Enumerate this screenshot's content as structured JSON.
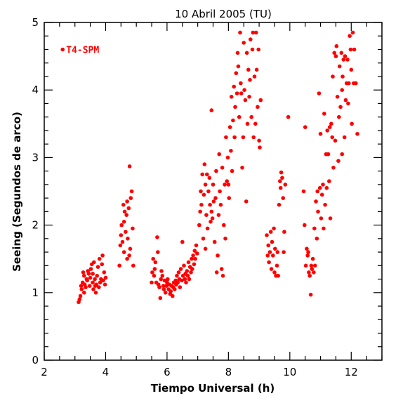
{
  "chart_data": {
    "type": "scatter",
    "title": "10 Abril 2005 (TU)",
    "xlabel": "Tiempo Universal (h)",
    "ylabel": "Seeing (Segundos de arco)",
    "xlim": [
      2,
      13
    ],
    "ylim": [
      0,
      5
    ],
    "xticks": [
      2,
      4,
      6,
      8,
      10,
      12
    ],
    "yticks": [
      0,
      1,
      2,
      3,
      4,
      5
    ],
    "grid": false,
    "legend_placement": "top-left",
    "series": [
      {
        "name": "T4-SPM",
        "color": "#ff0000",
        "points": [
          [
            2.6,
            4.6
          ],
          [
            3.12,
            0.86
          ],
          [
            3.15,
            0.9
          ],
          [
            3.18,
            0.95
          ],
          [
            3.2,
            1.1
          ],
          [
            3.22,
            1.05
          ],
          [
            3.25,
            1.15
          ],
          [
            3.27,
            1.3
          ],
          [
            3.3,
            1.25
          ],
          [
            3.32,
            1.12
          ],
          [
            3.35,
            1.08
          ],
          [
            3.38,
            1.2
          ],
          [
            3.4,
            1.18
          ],
          [
            3.42,
            1.32
          ],
          [
            3.45,
            1.28
          ],
          [
            3.48,
            1.1
          ],
          [
            3.5,
            1.22
          ],
          [
            3.52,
            1.35
          ],
          [
            3.55,
            1.42
          ],
          [
            3.58,
            1.15
          ],
          [
            3.6,
            1.05
          ],
          [
            3.62,
            1.45
          ],
          [
            3.65,
            1.2
          ],
          [
            3.68,
            1.0
          ],
          [
            3.7,
            1.12
          ],
          [
            3.72,
            1.25
          ],
          [
            3.75,
            1.38
          ],
          [
            3.78,
            1.08
          ],
          [
            3.8,
            1.5
          ],
          [
            3.82,
            1.15
          ],
          [
            3.85,
            1.2
          ],
          [
            3.88,
            1.42
          ],
          [
            3.9,
            1.55
          ],
          [
            3.92,
            1.18
          ],
          [
            3.95,
            1.3
          ],
          [
            3.98,
            1.12
          ],
          [
            4.0,
            1.22
          ],
          [
            3.3,
            1.0
          ],
          [
            3.58,
            1.28
          ],
          [
            3.66,
            1.1
          ],
          [
            4.45,
            1.4
          ],
          [
            4.48,
            1.7
          ],
          [
            4.5,
            1.85
          ],
          [
            4.52,
            2.0
          ],
          [
            4.55,
            1.75
          ],
          [
            4.58,
            2.3
          ],
          [
            4.6,
            1.6
          ],
          [
            4.62,
            2.2
          ],
          [
            4.65,
            1.9
          ],
          [
            4.68,
            2.15
          ],
          [
            4.7,
            1.5
          ],
          [
            4.72,
            1.8
          ],
          [
            4.75,
            2.25
          ],
          [
            4.78,
            2.87
          ],
          [
            4.8,
            1.65
          ],
          [
            4.82,
            2.4
          ],
          [
            4.85,
            2.5
          ],
          [
            4.88,
            1.95
          ],
          [
            4.9,
            1.4
          ],
          [
            4.6,
            2.05
          ],
          [
            4.7,
            2.35
          ],
          [
            4.77,
            1.55
          ],
          [
            5.5,
            1.15
          ],
          [
            5.52,
            1.3
          ],
          [
            5.55,
            1.5
          ],
          [
            5.58,
            1.25
          ],
          [
            5.6,
            1.35
          ],
          [
            5.62,
            1.45
          ],
          [
            5.65,
            1.15
          ],
          [
            5.68,
            1.82
          ],
          [
            5.7,
            1.6
          ],
          [
            5.72,
            1.12
          ],
          [
            5.75,
            1.08
          ],
          [
            5.78,
            0.92
          ],
          [
            5.8,
            1.2
          ],
          [
            5.82,
            1.32
          ],
          [
            5.85,
            1.25
          ],
          [
            5.88,
            1.1
          ],
          [
            5.9,
            1.05
          ],
          [
            5.92,
            1.18
          ],
          [
            5.95,
            1.0
          ],
          [
            5.98,
            1.1
          ],
          [
            6.0,
            1.15
          ],
          [
            6.02,
            1.2
          ],
          [
            6.05,
            1.05
          ],
          [
            6.08,
            1.12
          ],
          [
            6.1,
            0.98
          ],
          [
            6.12,
            1.02
          ],
          [
            6.15,
            1.1
          ],
          [
            6.18,
            0.95
          ],
          [
            6.2,
            1.08
          ],
          [
            6.22,
            1.15
          ],
          [
            6.25,
            1.05
          ],
          [
            6.28,
            1.18
          ],
          [
            6.3,
            1.12
          ],
          [
            6.32,
            1.25
          ],
          [
            6.35,
            1.15
          ],
          [
            6.38,
            1.3
          ],
          [
            6.4,
            1.2
          ],
          [
            6.42,
            1.08
          ],
          [
            6.45,
            1.35
          ],
          [
            6.48,
            1.18
          ],
          [
            6.5,
            1.75
          ],
          [
            6.52,
            1.25
          ],
          [
            6.55,
            1.4
          ],
          [
            6.58,
            1.2
          ],
          [
            6.6,
            1.28
          ],
          [
            6.62,
            1.15
          ],
          [
            6.65,
            1.32
          ],
          [
            6.68,
            1.25
          ],
          [
            6.7,
            1.45
          ],
          [
            6.72,
            1.2
          ],
          [
            6.75,
            1.38
          ],
          [
            6.78,
            1.3
          ],
          [
            6.8,
            1.5
          ],
          [
            6.82,
            1.35
          ],
          [
            6.85,
            1.55
          ],
          [
            6.88,
            1.42
          ],
          [
            6.9,
            1.62
          ],
          [
            6.92,
            1.5
          ],
          [
            6.95,
            1.7
          ],
          [
            6.98,
            1.58
          ],
          [
            7.05,
            2.0
          ],
          [
            7.08,
            2.2
          ],
          [
            7.1,
            2.5
          ],
          [
            7.12,
            2.3
          ],
          [
            7.15,
            2.75
          ],
          [
            7.18,
            1.8
          ],
          [
            7.2,
            2.45
          ],
          [
            7.22,
            2.9
          ],
          [
            7.25,
            2.6
          ],
          [
            7.28,
            2.15
          ],
          [
            7.3,
            2.75
          ],
          [
            7.32,
            1.95
          ],
          [
            7.35,
            2.5
          ],
          [
            7.38,
            2.7
          ],
          [
            7.4,
            2.3
          ],
          [
            7.42,
            2.05
          ],
          [
            7.45,
            3.7
          ],
          [
            7.48,
            2.1
          ],
          [
            7.5,
            2.6
          ],
          [
            7.52,
            2.35
          ],
          [
            7.55,
            1.75
          ],
          [
            7.58,
            2.4
          ],
          [
            7.6,
            2.8
          ],
          [
            7.62,
            1.3
          ],
          [
            7.65,
            1.55
          ],
          [
            7.68,
            2.15
          ],
          [
            7.7,
            3.05
          ],
          [
            7.72,
            2.5
          ],
          [
            7.75,
            2.3
          ],
          [
            7.78,
            1.35
          ],
          [
            7.8,
            2.85
          ],
          [
            7.82,
            1.25
          ],
          [
            7.85,
            2.0
          ],
          [
            7.88,
            2.6
          ],
          [
            7.9,
            1.8
          ],
          [
            7.92,
            3.3
          ],
          [
            7.95,
            2.65
          ],
          [
            7.98,
            3.0
          ],
          [
            8.0,
            2.6
          ],
          [
            8.02,
            2.4
          ],
          [
            8.05,
            3.45
          ],
          [
            8.08,
            3.1
          ],
          [
            8.1,
            3.9
          ],
          [
            8.12,
            2.8
          ],
          [
            8.15,
            3.55
          ],
          [
            8.18,
            4.05
          ],
          [
            8.2,
            3.3
          ],
          [
            8.22,
            3.75
          ],
          [
            8.25,
            4.25
          ],
          [
            8.28,
            3.95
          ],
          [
            8.3,
            4.55
          ],
          [
            8.32,
            4.35
          ],
          [
            8.35,
            3.6
          ],
          [
            8.38,
            4.85
          ],
          [
            8.4,
            4.1
          ],
          [
            8.42,
            3.95
          ],
          [
            8.45,
            2.85
          ],
          [
            8.48,
            3.3
          ],
          [
            8.5,
            4.7
          ],
          [
            8.52,
            4.0
          ],
          [
            8.55,
            3.85
          ],
          [
            8.58,
            2.35
          ],
          [
            8.6,
            4.55
          ],
          [
            8.62,
            3.5
          ],
          [
            8.65,
            4.3
          ],
          [
            8.68,
            3.9
          ],
          [
            8.7,
            4.15
          ],
          [
            8.72,
            4.75
          ],
          [
            8.75,
            3.6
          ],
          [
            8.78,
            4.6
          ],
          [
            8.8,
            4.85
          ],
          [
            8.82,
            3.3
          ],
          [
            8.85,
            4.2
          ],
          [
            8.88,
            3.5
          ],
          [
            8.9,
            4.85
          ],
          [
            8.92,
            4.3
          ],
          [
            8.95,
            3.75
          ],
          [
            8.98,
            4.6
          ],
          [
            9.0,
            3.25
          ],
          [
            9.02,
            3.15
          ],
          [
            9.05,
            3.85
          ],
          [
            7.25,
            1.65
          ],
          [
            7.45,
            2.2
          ],
          [
            9.25,
            1.85
          ],
          [
            9.28,
            1.55
          ],
          [
            9.3,
            1.7
          ],
          [
            9.32,
            1.45
          ],
          [
            9.35,
            1.6
          ],
          [
            9.38,
            1.9
          ],
          [
            9.4,
            1.35
          ],
          [
            9.42,
            1.75
          ],
          [
            9.45,
            1.55
          ],
          [
            9.48,
            1.95
          ],
          [
            9.5,
            1.3
          ],
          [
            9.52,
            1.65
          ],
          [
            9.55,
            1.25
          ],
          [
            9.58,
            1.4
          ],
          [
            9.6,
            1.6
          ],
          [
            9.62,
            1.25
          ],
          [
            9.65,
            2.3
          ],
          [
            9.68,
            2.65
          ],
          [
            9.7,
            2.55
          ],
          [
            9.72,
            2.78
          ],
          [
            9.75,
            2.7
          ],
          [
            9.78,
            2.4
          ],
          [
            9.8,
            1.6
          ],
          [
            9.82,
            1.9
          ],
          [
            9.85,
            2.6
          ],
          [
            9.95,
            3.6
          ],
          [
            10.45,
            2.5
          ],
          [
            10.48,
            2.0
          ],
          [
            10.5,
            3.45
          ],
          [
            10.52,
            1.4
          ],
          [
            10.55,
            1.65
          ],
          [
            10.58,
            1.55
          ],
          [
            10.6,
            1.6
          ],
          [
            10.62,
            1.3
          ],
          [
            10.65,
            1.25
          ],
          [
            10.68,
            0.97
          ],
          [
            10.7,
            1.4
          ],
          [
            10.72,
            1.35
          ],
          [
            10.75,
            1.5
          ],
          [
            10.78,
            1.3
          ],
          [
            10.8,
            1.95
          ],
          [
            10.82,
            1.4
          ],
          [
            10.85,
            2.35
          ],
          [
            10.88,
            1.8
          ],
          [
            10.9,
            2.5
          ],
          [
            10.92,
            2.2
          ],
          [
            10.95,
            3.95
          ],
          [
            10.98,
            2.55
          ],
          [
            11.0,
            3.35
          ],
          [
            11.02,
            2.1
          ],
          [
            11.05,
            2.45
          ],
          [
            11.08,
            2.6
          ],
          [
            11.1,
            1.95
          ],
          [
            11.12,
            3.65
          ],
          [
            11.15,
            2.3
          ],
          [
            11.18,
            3.05
          ],
          [
            11.2,
            2.55
          ],
          [
            11.22,
            3.4
          ],
          [
            11.25,
            3.05
          ],
          [
            11.28,
            2.65
          ],
          [
            11.3,
            3.45
          ],
          [
            11.32,
            2.1
          ],
          [
            11.35,
            3.5
          ],
          [
            11.38,
            3.3
          ],
          [
            11.4,
            4.2
          ],
          [
            11.42,
            2.85
          ],
          [
            11.45,
            4.55
          ],
          [
            11.48,
            3.25
          ],
          [
            11.5,
            4.5
          ],
          [
            11.52,
            4.65
          ],
          [
            11.55,
            3.9
          ],
          [
            11.58,
            2.95
          ],
          [
            11.6,
            3.6
          ],
          [
            11.62,
            4.35
          ],
          [
            11.65,
            3.75
          ],
          [
            11.68,
            4.55
          ],
          [
            11.7,
            3.05
          ],
          [
            11.72,
            4.2
          ],
          [
            11.75,
            4.45
          ],
          [
            11.78,
            3.3
          ],
          [
            11.8,
            4.5
          ],
          [
            11.82,
            3.85
          ],
          [
            11.85,
            4.1
          ],
          [
            11.88,
            4.45
          ],
          [
            11.9,
            3.8
          ],
          [
            11.92,
            4.1
          ],
          [
            11.95,
            4.8
          ],
          [
            11.98,
            4.6
          ],
          [
            12.0,
            4.3
          ],
          [
            12.02,
            3.5
          ],
          [
            12.05,
            4.85
          ],
          [
            12.08,
            4.1
          ],
          [
            12.1,
            4.6
          ],
          [
            12.15,
            4.1
          ],
          [
            12.2,
            3.35
          ],
          [
            11.7,
            4.0
          ]
        ]
      }
    ]
  }
}
